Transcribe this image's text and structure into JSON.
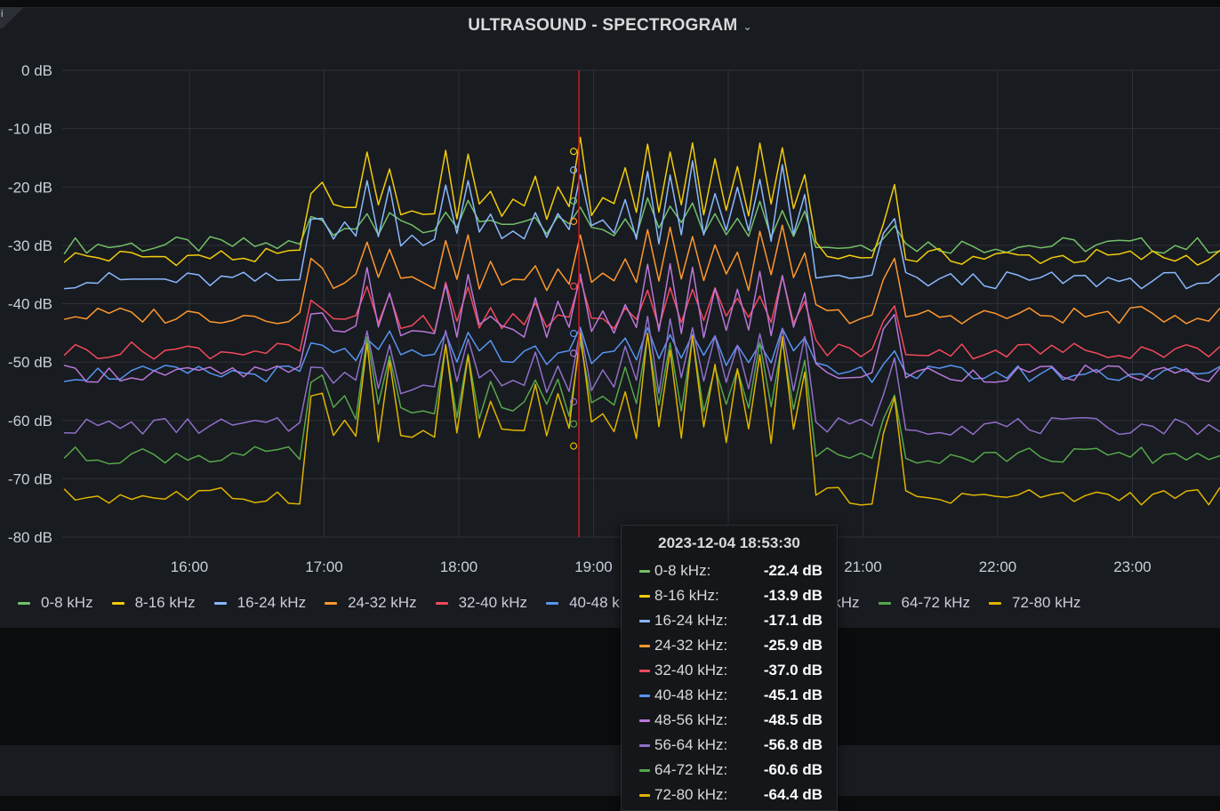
{
  "panel": {
    "title": "ULTRASOUND - SPECTROGRAM",
    "menu_icon": "chevron-down-icon",
    "corner_glyph": "i",
    "background": "#181b1f"
  },
  "chart_data": {
    "type": "line",
    "ylim": [
      -80,
      0
    ],
    "yticks": [
      "0 dB",
      "-10 dB",
      "-20 dB",
      "-30 dB",
      "-40 dB",
      "-50 dB",
      "-60 dB",
      "-70 dB",
      "-80 dB"
    ],
    "xticks": [
      "16:00",
      "17:00",
      "18:00",
      "19:00",
      "20:00",
      "21:00",
      "22:00",
      "23:00"
    ],
    "xlim_hours": [
      15.07,
      23.66
    ],
    "grid": true,
    "cursor_time": "18:53:30",
    "series": [
      {
        "name": "0-8 kHz",
        "color": "#73bf69",
        "base": -30,
        "amp": 8
      },
      {
        "name": "8-16 kHz",
        "color": "#f2cc0c",
        "base": -32,
        "amp": 22
      },
      {
        "name": "16-24 kHz",
        "color": "#8ab8ff",
        "base": -36,
        "amp": 21
      },
      {
        "name": "24-32 kHz",
        "color": "#ff9830",
        "base": -42,
        "amp": 16
      },
      {
        "name": "32-40 kHz",
        "color": "#f2495c",
        "base": -48,
        "amp": 13
      },
      {
        "name": "40-48 kHz",
        "color": "#5794f2",
        "base": -52,
        "amp": 8
      },
      {
        "name": "48-56 kHz",
        "color": "#b877d9",
        "base": -52,
        "amp": 20
      },
      {
        "name": "56-64 kHz",
        "color": "#8f6fc9",
        "base": -61,
        "amp": 20
      },
      {
        "name": "64-72 kHz",
        "color": "#56a64b",
        "base": -66,
        "amp": 22
      },
      {
        "name": "72-80 kHz",
        "color": "#e0b400",
        "base": -73,
        "amp": 30
      }
    ]
  },
  "legend": {
    "items": [
      "0-8 kHz",
      "8-16 kHz",
      "16-24 kHz",
      "24-32 kHz",
      "32-40 kHz",
      "40-48 kHz",
      "48-56 kHz",
      "56-64 kHz",
      "64-72 kHz",
      "72-80 kHz"
    ]
  },
  "tooltip": {
    "time": "2023-12-04 18:53:30",
    "rows": [
      {
        "name": "0-8 kHz:",
        "value": "-22.4 dB",
        "color": "#73bf69"
      },
      {
        "name": "8-16 kHz:",
        "value": "-13.9 dB",
        "color": "#f2cc0c"
      },
      {
        "name": "16-24 kHz:",
        "value": "-17.1 dB",
        "color": "#8ab8ff"
      },
      {
        "name": "24-32 kHz:",
        "value": "-25.9 dB",
        "color": "#ff9830"
      },
      {
        "name": "32-40 kHz:",
        "value": "-37.0 dB",
        "color": "#f2495c"
      },
      {
        "name": "40-48 kHz:",
        "value": "-45.1 dB",
        "color": "#5794f2"
      },
      {
        "name": "48-56 kHz:",
        "value": "-48.5 dB",
        "color": "#b877d9"
      },
      {
        "name": "56-64 kHz:",
        "value": "-56.8 dB",
        "color": "#8f6fc9"
      },
      {
        "name": "64-72 kHz:",
        "value": "-60.6 dB",
        "color": "#56a64b"
      },
      {
        "name": "72-80 kHz:",
        "value": "-64.4 dB",
        "color": "#e0b400"
      }
    ]
  }
}
